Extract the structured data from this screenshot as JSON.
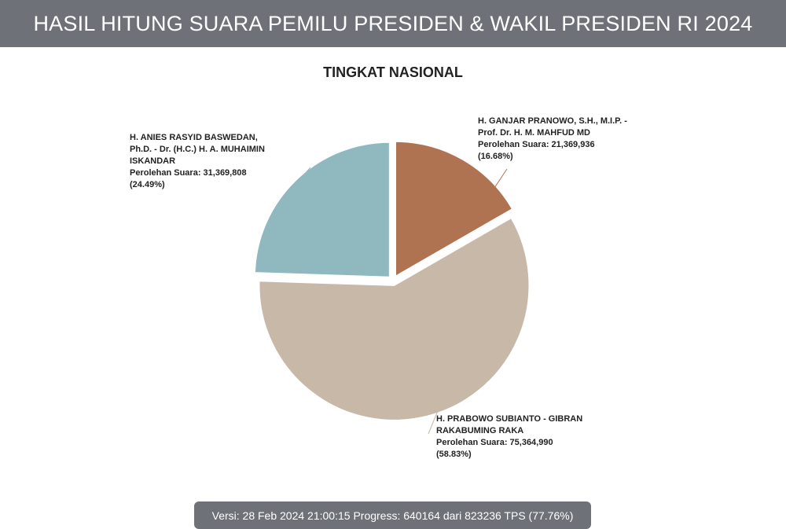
{
  "header": {
    "title": "HASIL HITUNG SUARA PEMILU PRESIDEN & WAKIL PRESIDEN RI 2024"
  },
  "chart_data": {
    "type": "pie",
    "title": "TINGKAT NASIONAL",
    "slices": [
      {
        "name_lines": [
          "H. GANJAR PRANOWO, S.H., M.I.P. -",
          "Prof. Dr. H. M. MAHFUD MD"
        ],
        "votes_text": "Perolehan Suara: 21,369,936",
        "pct_text": "(16.68%)",
        "value": 21369936,
        "percent": 16.68,
        "color": "#b07352"
      },
      {
        "name_lines": [
          "H. PRABOWO SUBIANTO - GIBRAN",
          "RAKABUMING RAKA"
        ],
        "votes_text": "Perolehan Suara: 75,364,990",
        "pct_text": "(58.83%)",
        "value": 75364990,
        "percent": 58.83,
        "color": "#c8b8a8"
      },
      {
        "name_lines": [
          "H. ANIES RASYID BASWEDAN,",
          "Ph.D. - Dr. (H.C.) H. A. MUHAIMIN",
          "ISKANDAR"
        ],
        "votes_text": "Perolehan Suara: 31,369,808",
        "pct_text": "(24.49%)",
        "value": 31369808,
        "percent": 24.49,
        "color": "#8fb8bf"
      }
    ]
  },
  "footer": {
    "text": "Versi: 28 Feb 2024 21:00:15 Progress: 640164 dari 823236 TPS (77.76%)"
  }
}
